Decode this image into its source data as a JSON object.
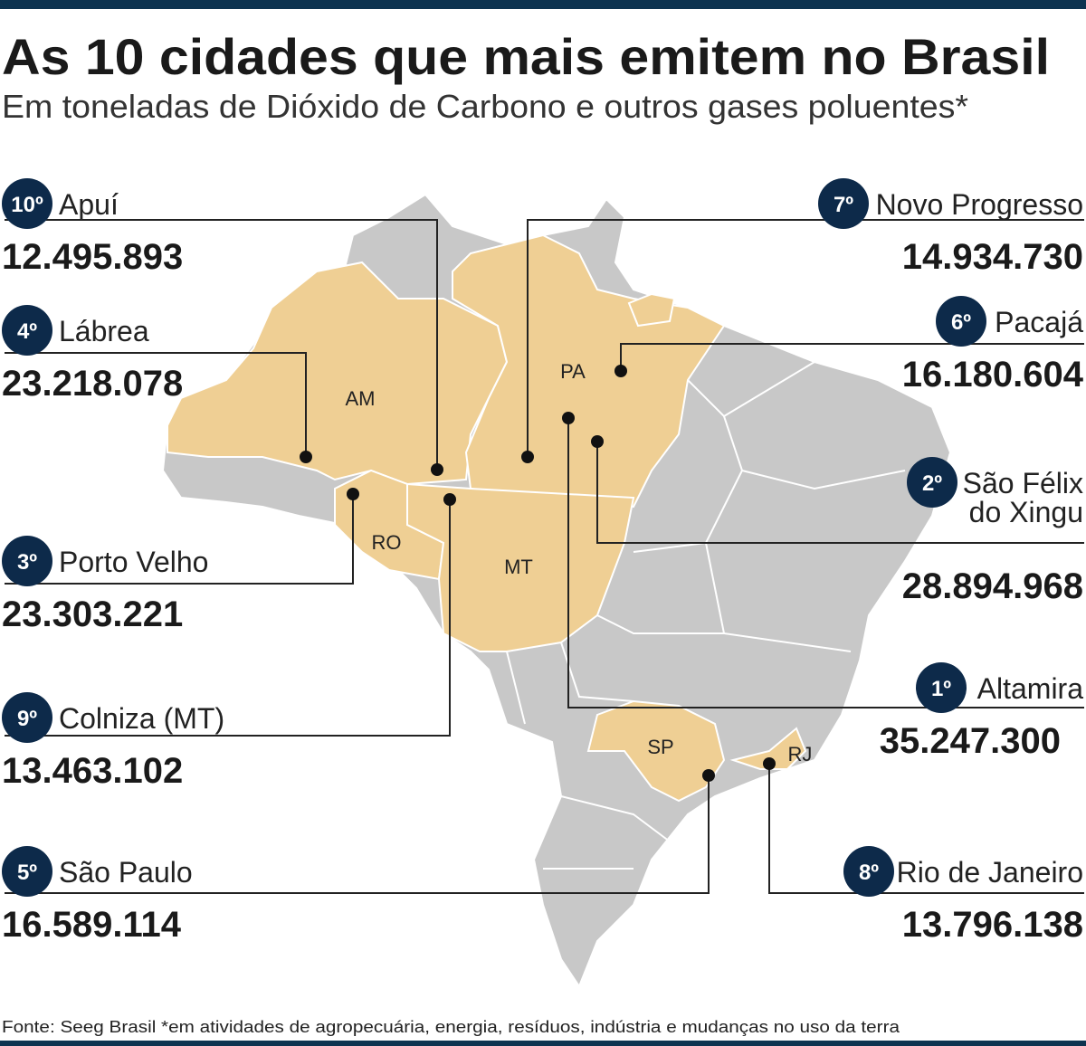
{
  "header": {
    "title": "As 10 cidades que mais emitem no Brasil",
    "subtitle": "Em toneladas de Dióxido de Carbono e outros gases poluentes*"
  },
  "cities": [
    {
      "rank": "10º",
      "name": "Apuí",
      "value": "12.495.893"
    },
    {
      "rank": "4º",
      "name": "Lábrea",
      "value": "23.218.078"
    },
    {
      "rank": "3º",
      "name": "Porto Velho",
      "value": "23.303.221"
    },
    {
      "rank": "9º",
      "name": "Colniza (MT)",
      "value": "13.463.102"
    },
    {
      "rank": "5º",
      "name": "São Paulo",
      "value": "16.589.114"
    },
    {
      "rank": "7º",
      "name": "Novo Progresso",
      "value": "14.934.730"
    },
    {
      "rank": "6º",
      "name": "Pacajá",
      "value": "16.180.604"
    },
    {
      "rank": "2º",
      "name": [
        "São Félix",
        "do Xingu"
      ],
      "value": "28.894.968"
    },
    {
      "rank": "1º",
      "name": "Altamira",
      "value": "35.247.300"
    },
    {
      "rank": "8º",
      "name": "Rio de Janeiro",
      "value": "13.796.138"
    }
  ],
  "states": [
    "AM",
    "PA",
    "RO",
    "MT",
    "SP",
    "RJ"
  ],
  "footer": "Fonte: Seeg Brasil *em atividades de agropecuária, energia, resíduos, indústria e mudanças no uso da terra"
}
